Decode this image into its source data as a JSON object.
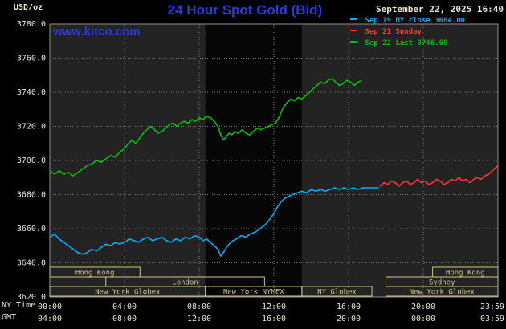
{
  "header": {
    "units": "USD/oz",
    "title": "24 Hour Spot Gold (Bid)",
    "datetime": "September 22, 2025 16:40",
    "watermark": "www.kitco.com"
  },
  "colors": {
    "background": "#000000",
    "plot_bg": "#232323",
    "band": "#060606",
    "grid": "#757575",
    "border": "#909090",
    "axis_text": "#e9e4ce",
    "session": "#d0c582",
    "title_blue": "#2b38e8",
    "sep19": "#00aaff",
    "sep21": "#ff3333",
    "sep22": "#00bf00"
  },
  "legend": [
    {
      "label": "Sep 19 NY close 3684.00",
      "color": "#00aaff"
    },
    {
      "label": "Sep 21 Sunday",
      "color": "#ff3333"
    },
    {
      "label": "Sep 22 Last 3746.60",
      "color": "#00bf00"
    }
  ],
  "y_axis": {
    "ticks": [
      "3780.0",
      "3760.0",
      "3740.0",
      "3720.0",
      "3700.0",
      "3680.0",
      "3660.0",
      "3640.0",
      "3620.0"
    ]
  },
  "x_axis": {
    "row1_label": "NY Time",
    "row2_label": "GMT",
    "tick_hours": [
      0,
      4,
      8,
      12,
      16,
      20,
      24
    ],
    "row1_ticks": [
      "00:00",
      "04:00",
      "08:00",
      "12:00",
      "16:00",
      "20:00",
      "23:59"
    ],
    "row2_ticks": [
      "04:00",
      "08:00",
      "12:00",
      "16:00",
      "20:00",
      "00:00",
      "03:59"
    ]
  },
  "chart_data": {
    "type": "line",
    "title": "24 Hour Spot Gold (Bid)",
    "ylabel": "USD/oz",
    "ylim": [
      3620,
      3780
    ],
    "xlim_hours": [
      0,
      24
    ],
    "grid": true,
    "legend_position": "top-right",
    "highlight_band_hours": [
      8.33,
      13.5
    ],
    "series": [
      {
        "id": "sep19",
        "name": "Sep 19 NY close",
        "close": 3684.0,
        "color": "#00aaff",
        "points": [
          [
            0,
            3655
          ],
          [
            0.25,
            3657
          ],
          [
            0.5,
            3654
          ],
          [
            0.75,
            3652
          ],
          [
            1,
            3650
          ],
          [
            1.25,
            3648
          ],
          [
            1.5,
            3646
          ],
          [
            1.75,
            3645
          ],
          [
            2,
            3646
          ],
          [
            2.25,
            3648
          ],
          [
            2.5,
            3647
          ],
          [
            2.75,
            3649
          ],
          [
            3,
            3651
          ],
          [
            3.25,
            3650
          ],
          [
            3.5,
            3652
          ],
          [
            3.75,
            3651
          ],
          [
            4,
            3652
          ],
          [
            4.25,
            3654
          ],
          [
            4.5,
            3653
          ],
          [
            4.75,
            3652
          ],
          [
            5,
            3654
          ],
          [
            5.25,
            3655
          ],
          [
            5.5,
            3653
          ],
          [
            5.75,
            3654
          ],
          [
            6,
            3655
          ],
          [
            6.25,
            3653
          ],
          [
            6.5,
            3652
          ],
          [
            6.75,
            3654
          ],
          [
            7,
            3653
          ],
          [
            7.25,
            3655
          ],
          [
            7.5,
            3654
          ],
          [
            7.75,
            3656
          ],
          [
            8,
            3655
          ],
          [
            8.2,
            3653
          ],
          [
            8.4,
            3654
          ],
          [
            8.6,
            3652
          ],
          [
            8.8,
            3650
          ],
          [
            9,
            3648
          ],
          [
            9.15,
            3644
          ],
          [
            9.3,
            3646
          ],
          [
            9.45,
            3649
          ],
          [
            9.6,
            3651
          ],
          [
            9.8,
            3653
          ],
          [
            10,
            3654
          ],
          [
            10.25,
            3656
          ],
          [
            10.5,
            3655
          ],
          [
            10.75,
            3657
          ],
          [
            11,
            3658
          ],
          [
            11.25,
            3660
          ],
          [
            11.5,
            3662
          ],
          [
            11.75,
            3665
          ],
          [
            12,
            3669
          ],
          [
            12.2,
            3673
          ],
          [
            12.4,
            3676
          ],
          [
            12.6,
            3678
          ],
          [
            12.8,
            3679
          ],
          [
            13,
            3680
          ],
          [
            13.25,
            3681
          ],
          [
            13.5,
            3682
          ],
          [
            13.75,
            3681
          ],
          [
            14,
            3683
          ],
          [
            14.25,
            3682
          ],
          [
            14.5,
            3683
          ],
          [
            14.75,
            3682
          ],
          [
            15,
            3683
          ],
          [
            15.25,
            3684
          ],
          [
            15.5,
            3683
          ],
          [
            15.75,
            3684
          ],
          [
            16,
            3683
          ],
          [
            16.25,
            3684
          ],
          [
            16.5,
            3683
          ],
          [
            16.75,
            3684
          ],
          [
            17,
            3684
          ],
          [
            17.3,
            3684
          ],
          [
            17.6,
            3684
          ]
        ]
      },
      {
        "id": "sep21",
        "name": "Sep 21 Sunday",
        "color": "#ff3333",
        "points": [
          [
            17.7,
            3685
          ],
          [
            17.9,
            3687
          ],
          [
            18.1,
            3686
          ],
          [
            18.3,
            3688
          ],
          [
            18.5,
            3687
          ],
          [
            18.7,
            3685
          ],
          [
            18.9,
            3687
          ],
          [
            19.1,
            3688
          ],
          [
            19.3,
            3686
          ],
          [
            19.5,
            3687
          ],
          [
            19.7,
            3689
          ],
          [
            19.9,
            3687
          ],
          [
            20.1,
            3688
          ],
          [
            20.3,
            3686
          ],
          [
            20.5,
            3687
          ],
          [
            20.7,
            3689
          ],
          [
            20.9,
            3688
          ],
          [
            21.1,
            3686
          ],
          [
            21.3,
            3687
          ],
          [
            21.5,
            3689
          ],
          [
            21.7,
            3688
          ],
          [
            21.9,
            3690
          ],
          [
            22.1,
            3688
          ],
          [
            22.3,
            3689
          ],
          [
            22.5,
            3687
          ],
          [
            22.7,
            3689
          ],
          [
            22.9,
            3690
          ],
          [
            23.1,
            3689
          ],
          [
            23.3,
            3691
          ],
          [
            23.5,
            3692
          ],
          [
            23.7,
            3694
          ],
          [
            23.9,
            3696
          ],
          [
            24,
            3697
          ]
        ]
      },
      {
        "id": "sep22",
        "name": "Sep 22",
        "last": 3746.6,
        "color": "#00bf00",
        "points": [
          [
            0,
            3694
          ],
          [
            0.25,
            3692
          ],
          [
            0.5,
            3694
          ],
          [
            0.75,
            3692
          ],
          [
            1,
            3693
          ],
          [
            1.25,
            3691
          ],
          [
            1.5,
            3693
          ],
          [
            1.75,
            3695
          ],
          [
            2,
            3697
          ],
          [
            2.25,
            3698
          ],
          [
            2.5,
            3700
          ],
          [
            2.75,
            3699
          ],
          [
            3,
            3701
          ],
          [
            3.25,
            3703
          ],
          [
            3.5,
            3702
          ],
          [
            3.75,
            3705
          ],
          [
            4,
            3707
          ],
          [
            4.2,
            3710
          ],
          [
            4.4,
            3712
          ],
          [
            4.6,
            3710
          ],
          [
            4.8,
            3713
          ],
          [
            5,
            3716
          ],
          [
            5.2,
            3718
          ],
          [
            5.4,
            3720
          ],
          [
            5.6,
            3718
          ],
          [
            5.8,
            3716
          ],
          [
            6,
            3717
          ],
          [
            6.2,
            3719
          ],
          [
            6.4,
            3721
          ],
          [
            6.6,
            3722
          ],
          [
            6.8,
            3720
          ],
          [
            7,
            3722
          ],
          [
            7.2,
            3723
          ],
          [
            7.4,
            3722
          ],
          [
            7.6,
            3724
          ],
          [
            7.8,
            3723
          ],
          [
            8,
            3725
          ],
          [
            8.2,
            3724
          ],
          [
            8.4,
            3726
          ],
          [
            8.6,
            3725
          ],
          [
            8.8,
            3723
          ],
          [
            9,
            3720
          ],
          [
            9.15,
            3715
          ],
          [
            9.3,
            3712
          ],
          [
            9.45,
            3714
          ],
          [
            9.6,
            3716
          ],
          [
            9.75,
            3715
          ],
          [
            9.9,
            3717
          ],
          [
            10.1,
            3716
          ],
          [
            10.3,
            3718
          ],
          [
            10.5,
            3716
          ],
          [
            10.7,
            3715
          ],
          [
            10.9,
            3717
          ],
          [
            11.1,
            3719
          ],
          [
            11.3,
            3718
          ],
          [
            11.5,
            3719
          ],
          [
            11.7,
            3720
          ],
          [
            11.9,
            3721
          ],
          [
            12.1,
            3722
          ],
          [
            12.3,
            3726
          ],
          [
            12.5,
            3731
          ],
          [
            12.7,
            3734
          ],
          [
            12.9,
            3736
          ],
          [
            13.1,
            3735
          ],
          [
            13.3,
            3737
          ],
          [
            13.5,
            3736
          ],
          [
            13.7,
            3738
          ],
          [
            13.9,
            3740
          ],
          [
            14.1,
            3742
          ],
          [
            14.3,
            3744
          ],
          [
            14.5,
            3746
          ],
          [
            14.7,
            3745
          ],
          [
            14.9,
            3747
          ],
          [
            15.1,
            3748
          ],
          [
            15.3,
            3746
          ],
          [
            15.5,
            3744
          ],
          [
            15.7,
            3745
          ],
          [
            15.9,
            3747
          ],
          [
            16.1,
            3746
          ],
          [
            16.3,
            3744
          ],
          [
            16.5,
            3746
          ],
          [
            16.67,
            3746.6
          ]
        ]
      }
    ],
    "sessions": [
      {
        "row": 0,
        "label": "Hong Kong",
        "start_hour": 0.0,
        "end_hour": 4.83
      },
      {
        "row": 0,
        "label": "Hong Kong",
        "start_hour": 20.5,
        "end_hour": 24.0
      },
      {
        "row": 1,
        "label": "London",
        "start_hour": 3.0,
        "end_hour": 11.5
      },
      {
        "row": 1,
        "label": "Sydney",
        "start_hour": 18.0,
        "end_hour": 24.0
      },
      {
        "row": 2,
        "label": "New York Globex",
        "start_hour": 0.0,
        "end_hour": 8.33
      },
      {
        "row": 2,
        "label": "New York NYMEX",
        "start_hour": 8.33,
        "end_hour": 13.5
      },
      {
        "row": 2,
        "label": "NY Globex",
        "start_hour": 13.5,
        "end_hour": 17.25
      },
      {
        "row": 2,
        "label": "New York Globex",
        "start_hour": 18.0,
        "end_hour": 24.0
      }
    ]
  }
}
